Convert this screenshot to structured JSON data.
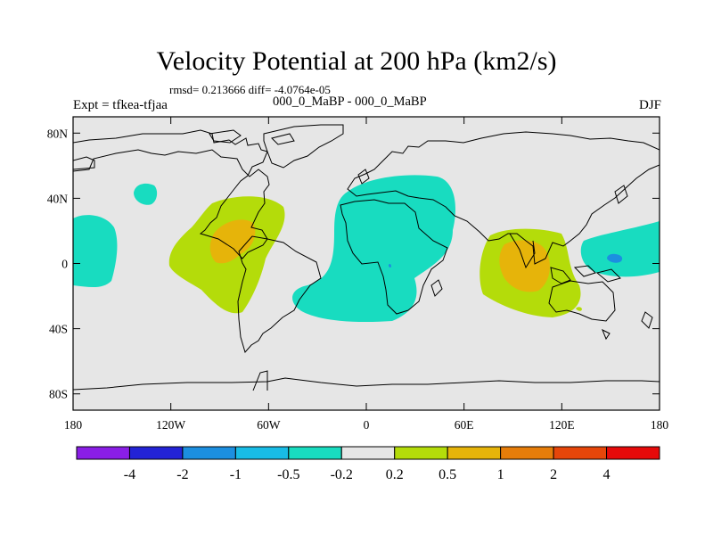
{
  "header": {
    "title": "Velocity Potential at 200 hPa (km2/s)",
    "stats": "rmsd= 0.213666 diff= -4.0764e-05",
    "left_label": "Expt = tfkea-tfjaa",
    "subtitle": "000_0_MaBP - 000_0_MaBP",
    "right_label": "DJF"
  },
  "chart_data": {
    "type": "heatmap",
    "projection": "cylindrical equidistant",
    "xlim": [
      -180,
      180
    ],
    "ylim": [
      -90,
      90
    ],
    "x_ticks": [
      {
        "value": -180,
        "label": "180"
      },
      {
        "value": -120,
        "label": "120W"
      },
      {
        "value": -60,
        "label": "60W"
      },
      {
        "value": 0,
        "label": "0"
      },
      {
        "value": 60,
        "label": "60E"
      },
      {
        "value": 120,
        "label": "120E"
      },
      {
        "value": 180,
        "label": "180"
      }
    ],
    "y_ticks": [
      {
        "value": 80,
        "label": "80N"
      },
      {
        "value": 40,
        "label": "40N"
      },
      {
        "value": 0,
        "label": "0"
      },
      {
        "value": -40,
        "label": "40S"
      },
      {
        "value": -80,
        "label": "80S"
      }
    ],
    "levels": [
      "-4",
      "-2",
      "-1",
      "-0.5",
      "-0.2",
      "0.2",
      "0.5",
      "1",
      "2",
      "4"
    ],
    "colors": [
      "#8a1ee6",
      "#2323d6",
      "#1c8fe0",
      "#18bce6",
      "#18dcc0",
      "#e6e6e6",
      "#b4dc0a",
      "#e6b40a",
      "#e67d0a",
      "#e6460a",
      "#e60a0a"
    ],
    "background_color": "#e6e6e6",
    "regions": [
      {
        "lon": 0,
        "lat": 5,
        "level": "-0.5",
        "description": "Atlantic / Africa negative anomaly"
      },
      {
        "lon": -168,
        "lat": 5,
        "level": "-0.5",
        "description": "central Pacific"
      },
      {
        "lon": -138,
        "lat": 42,
        "level": "-0.5",
        "description": "north Pacific"
      },
      {
        "lon": 165,
        "lat": 13,
        "level": "-0.5",
        "description": "west Pacific"
      },
      {
        "lon": 152,
        "lat": 2,
        "level": "-1",
        "description": "west Pacific core"
      },
      {
        "lon": 15,
        "lat": 0,
        "level": "-1",
        "description": "central Africa spot"
      },
      {
        "lon": -85,
        "lat": 5,
        "level": "0.2",
        "description": "tropical Americas positive"
      },
      {
        "lon": -80,
        "lat": 10,
        "level": "0.5",
        "description": "Central America core"
      },
      {
        "lon": 100,
        "lat": 0,
        "level": "0.2",
        "description": "Indian Ocean / maritime positive"
      },
      {
        "lon": 98,
        "lat": 0,
        "level": "0.5",
        "description": "Indian Ocean core"
      },
      {
        "lon": 133,
        "lat": -28,
        "level": "0.2",
        "description": "Australia spot"
      }
    ]
  },
  "colorbar": {
    "tick_labels": [
      "-4",
      "-2",
      "-1",
      "-0.5",
      "-0.2",
      "0.2",
      "0.5",
      "1",
      "2",
      "4"
    ]
  }
}
